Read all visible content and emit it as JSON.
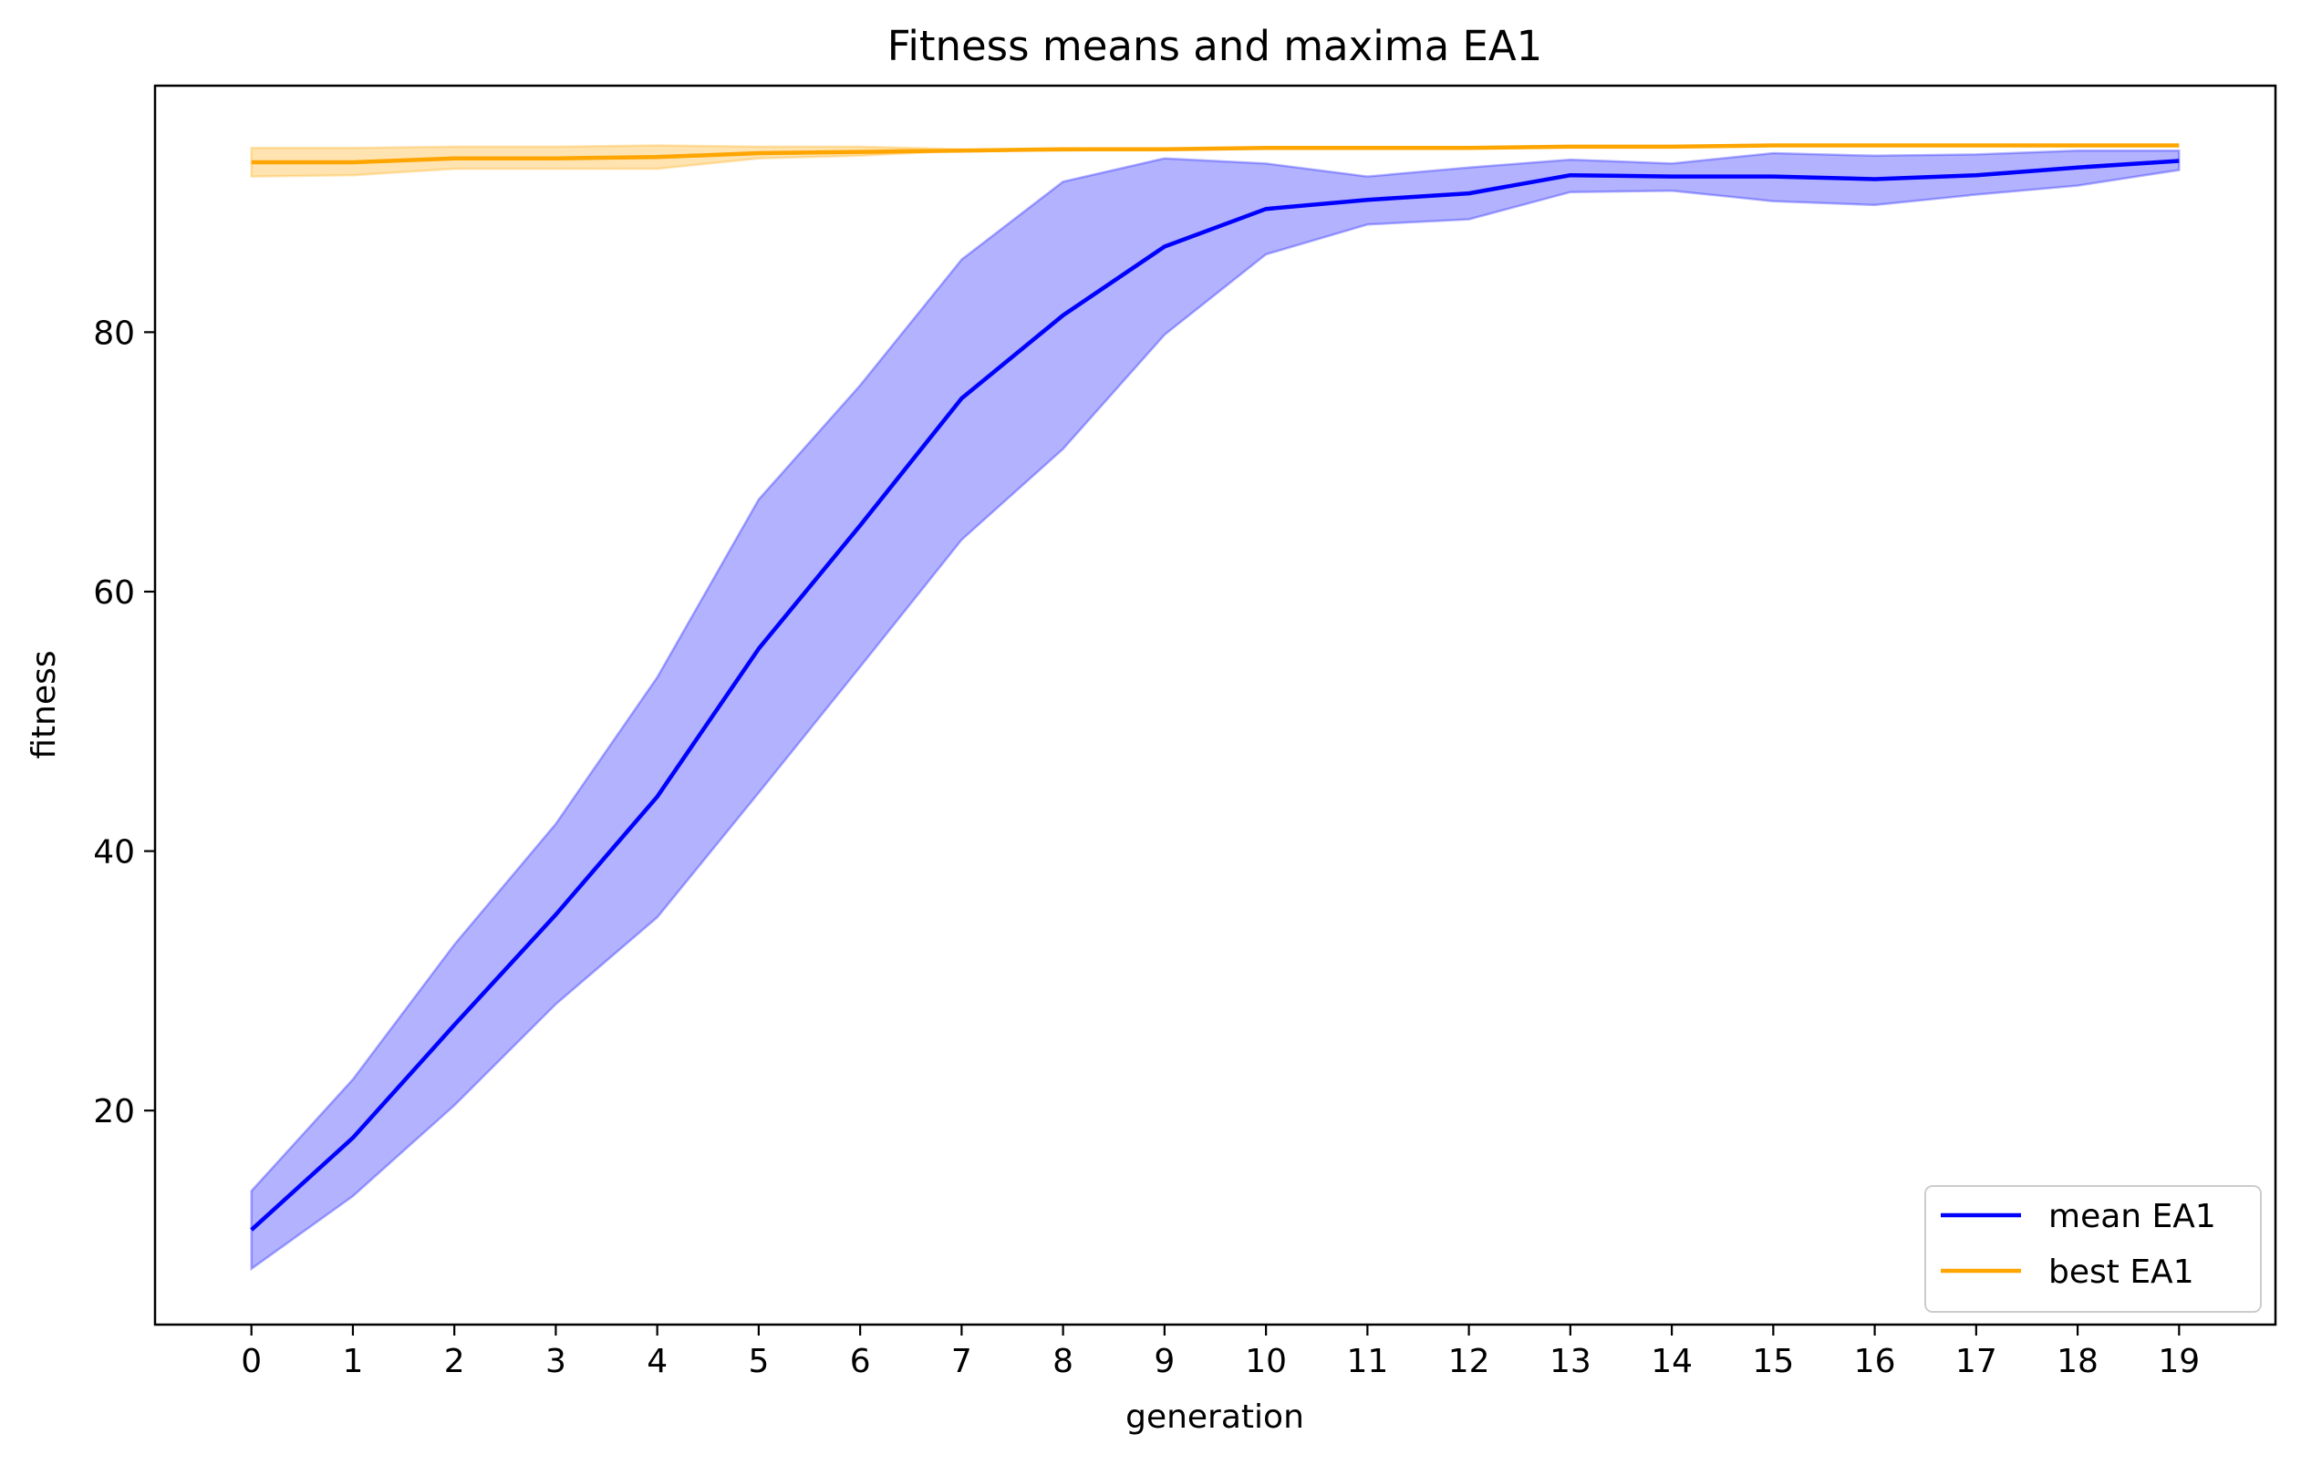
{
  "chart_data": {
    "type": "line",
    "title": "Fitness means and maxima EA1",
    "xlabel": "generation",
    "ylabel": "fitness",
    "x": [
      0,
      1,
      2,
      3,
      4,
      5,
      6,
      7,
      8,
      9,
      10,
      11,
      12,
      13,
      14,
      15,
      16,
      17,
      18,
      19
    ],
    "xticks": [
      "0",
      "1",
      "2",
      "3",
      "4",
      "5",
      "6",
      "7",
      "8",
      "9",
      "10",
      "11",
      "12",
      "13",
      "14",
      "15",
      "16",
      "17",
      "18",
      "19"
    ],
    "yticks": [
      20,
      40,
      60,
      80
    ],
    "xlim": [
      -0.95,
      19.95
    ],
    "ylim": [
      3.5,
      99
    ],
    "grid": false,
    "legend_position": "lower-right",
    "series": [
      {
        "name": "mean EA1",
        "color": "#0000ff",
        "values": [
          10.8,
          17.9,
          26.6,
          35.1,
          44.2,
          55.6,
          65.1,
          74.9,
          81.3,
          86.6,
          89.5,
          90.2,
          90.7,
          92.1,
          92.0,
          92.0,
          91.8,
          92.1,
          92.7,
          93.2
        ],
        "band_lower": [
          7.8,
          13.4,
          20.4,
          28.2,
          34.9,
          44.5,
          54.2,
          64.0,
          71.0,
          79.8,
          86.0,
          88.3,
          88.7,
          90.8,
          90.9,
          90.1,
          89.8,
          90.6,
          91.3,
          92.5
        ],
        "band_upper": [
          13.8,
          22.4,
          32.8,
          42.1,
          53.4,
          67.1,
          75.9,
          85.6,
          91.6,
          93.4,
          93.0,
          92.0,
          92.7,
          93.3,
          93.0,
          93.8,
          93.6,
          93.7,
          94.0,
          94.0
        ],
        "band_color": "#0000ff"
      },
      {
        "name": "best EA1",
        "color": "#ffa500",
        "values": [
          93.1,
          93.1,
          93.4,
          93.4,
          93.5,
          93.8,
          93.9,
          94.0,
          94.1,
          94.1,
          94.2,
          94.2,
          94.2,
          94.3,
          94.3,
          94.4,
          94.4,
          94.4,
          94.4,
          94.4
        ],
        "band_lower": [
          92.0,
          92.1,
          92.6,
          92.6,
          92.6,
          93.4,
          93.6,
          94.0,
          94.0,
          94.1,
          94.2,
          94.2,
          94.2,
          94.3,
          94.3,
          94.4,
          94.4,
          94.4,
          94.4,
          94.4
        ],
        "band_upper": [
          94.2,
          94.2,
          94.3,
          94.3,
          94.4,
          94.3,
          94.3,
          94.1,
          94.1,
          94.1,
          94.2,
          94.2,
          94.2,
          94.3,
          94.3,
          94.4,
          94.4,
          94.4,
          94.4,
          94.4
        ],
        "band_color": "#ffa500"
      }
    ]
  }
}
